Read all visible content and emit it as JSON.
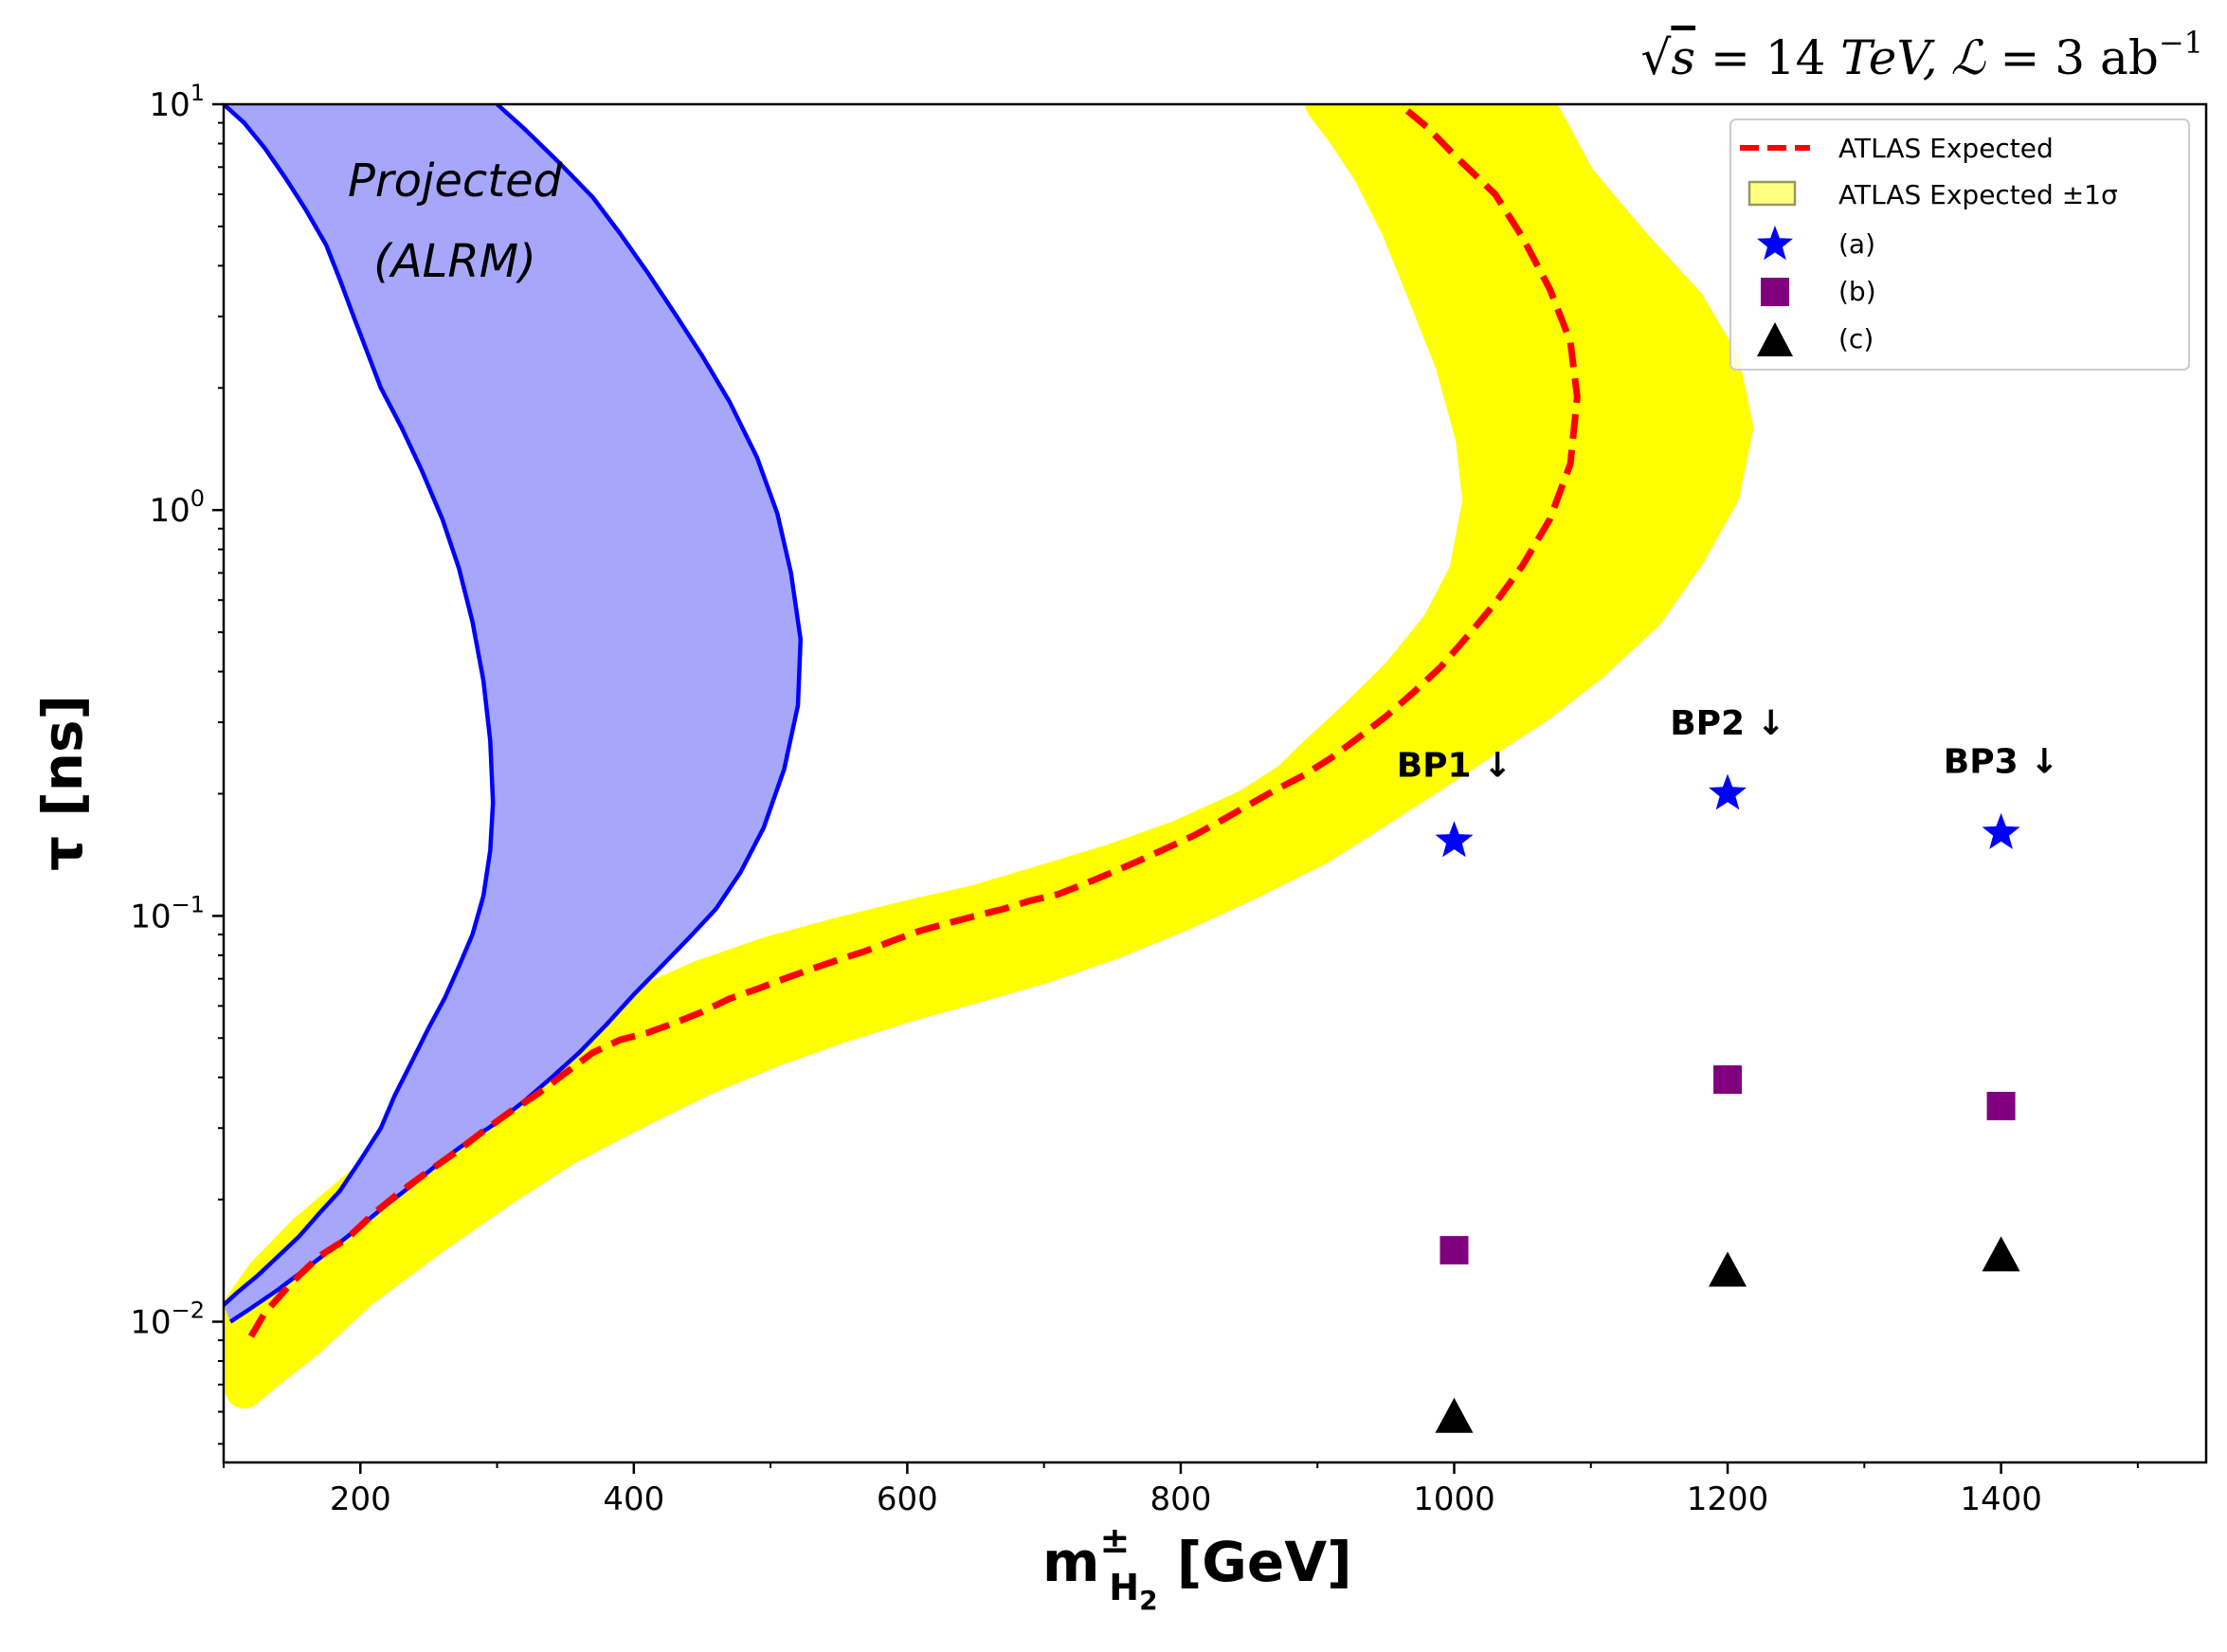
{
  "chart_data": {
    "type": "line",
    "title": "√s = 14 TeV,  ℒ = 3 ab⁻¹",
    "title_parts": {
      "sqrt": "√",
      "s": "s",
      "eq1": " = 14 ",
      "tev": "TeV,",
      "lumi": "ℒ",
      "eq2": " = 3 ab",
      "sup": "−1"
    },
    "xlabel": "m",
    "xlabel_sup": "±",
    "xlabel_sub": "H",
    "xlabel_subsub": "2",
    "xlabel_unit": " [GeV]",
    "ylabel": "τ [ns]",
    "xlim": [
      100,
      1550
    ],
    "ylim": [
      0.0045,
      10
    ],
    "y_scale": "log",
    "x_ticks": [
      200,
      400,
      600,
      800,
      1000,
      1200,
      1400
    ],
    "x_tick_labels": [
      "200",
      "400",
      "600",
      "800",
      "1000",
      "1200",
      "1400"
    ],
    "y_ticks": [
      {
        "value": 10,
        "base": "10",
        "exp": "1"
      },
      {
        "value": 1,
        "base": "10",
        "exp": "0"
      },
      {
        "value": 0.1,
        "base": "10",
        "exp": "−1"
      },
      {
        "value": 0.01,
        "base": "10",
        "exp": "−2"
      }
    ],
    "grid": false,
    "legend_position": "top-right",
    "legend": [
      {
        "label": "ATLAS Expected",
        "marker": "dashed-line",
        "color": "#ff0000"
      },
      {
        "label": "ATLAS Expected ±1σ",
        "marker": "band",
        "color": "#ffff80"
      },
      {
        "label": "(a)",
        "marker": "star",
        "color": "#0000ff"
      },
      {
        "label": "(b)",
        "marker": "square",
        "color": "#800080"
      },
      {
        "label": "(c)",
        "marker": "triangle",
        "color": "#000000"
      }
    ],
    "colors": {
      "expected_line": "#ff0000",
      "band": "#ffff00",
      "projected_fill": "#a6a6fb",
      "projected_edge": "#0000ff",
      "star": "#0000ff",
      "square": "#800080",
      "triangle": "#000000"
    },
    "atlas_expected": {
      "x": [
        120,
        130,
        150,
        170,
        190,
        210,
        230,
        250,
        270,
        290,
        310,
        330,
        350,
        370,
        390,
        410,
        430,
        450,
        470,
        490,
        510,
        530,
        550,
        570,
        590,
        610,
        630,
        650,
        670,
        690,
        710,
        730,
        750,
        770,
        790,
        810,
        830,
        850,
        870,
        890,
        910,
        930,
        950,
        970,
        990,
        1010,
        1030,
        1050,
        1070,
        1085,
        1090,
        1085,
        1070,
        1050,
        1030,
        1000,
        980,
        960
      ],
      "y": [
        0.0092,
        0.0105,
        0.0125,
        0.0145,
        0.016,
        0.0185,
        0.021,
        0.0235,
        0.0262,
        0.0295,
        0.033,
        0.0365,
        0.041,
        0.046,
        0.0495,
        0.0515,
        0.0545,
        0.058,
        0.0625,
        0.066,
        0.07,
        0.074,
        0.078,
        0.082,
        0.087,
        0.092,
        0.096,
        0.1,
        0.104,
        0.109,
        0.113,
        0.12,
        0.128,
        0.137,
        0.147,
        0.158,
        0.172,
        0.188,
        0.205,
        0.222,
        0.245,
        0.275,
        0.31,
        0.355,
        0.41,
        0.49,
        0.59,
        0.73,
        0.95,
        1.3,
        1.9,
        2.6,
        3.5,
        4.7,
        6.0,
        7.5,
        8.8,
        10.0
      ]
    },
    "atlas_band": {
      "lower_edge": {
        "x": [
          115,
          130,
          160,
          200,
          250,
          300,
          350,
          400,
          450,
          500,
          550,
          600,
          650,
          700,
          750,
          800,
          850,
          900,
          940,
          980,
          1020,
          1060,
          1100,
          1140,
          1170,
          1195,
          1205,
          1195,
          1170,
          1130,
          1090,
          1060
        ],
        "y": [
          0.0068,
          0.0075,
          0.009,
          0.012,
          0.016,
          0.021,
          0.027,
          0.033,
          0.04,
          0.047,
          0.054,
          0.061,
          0.068,
          0.076,
          0.087,
          0.102,
          0.122,
          0.148,
          0.18,
          0.22,
          0.27,
          0.33,
          0.42,
          0.56,
          0.78,
          1.1,
          1.6,
          2.3,
          3.2,
          4.5,
          6.5,
          10.0
        ]
      },
      "upper_edge": {
        "x": [
          115,
          130,
          160,
          200,
          250,
          300,
          350,
          400,
          450,
          500,
          550,
          600,
          650,
          700,
          750,
          800,
          850,
          880,
          900,
          930,
          960,
          990,
          1010,
          1020,
          1015,
          1000,
          980,
          960,
          940,
          920,
          905
        ],
        "y": [
          0.011,
          0.013,
          0.0165,
          0.0215,
          0.029,
          0.038,
          0.048,
          0.059,
          0.07,
          0.08,
          0.089,
          0.098,
          0.107,
          0.12,
          0.135,
          0.155,
          0.185,
          0.215,
          0.25,
          0.31,
          0.39,
          0.52,
          0.7,
          1.05,
          1.5,
          2.3,
          3.4,
          5.0,
          6.8,
          8.6,
          10.0
        ]
      }
    },
    "projected_alrm": {
      "label_line1": "Projected",
      "label_line2": "(ALRM)",
      "left_edge": {
        "x": [
          100,
          115,
          130,
          145,
          160,
          175,
          185,
          195,
          205,
          215,
          230,
          245,
          260,
          272,
          282,
          290,
          295,
          297,
          295,
          290,
          282,
          272,
          262,
          250,
          238,
          225,
          215,
          200,
          185,
          170,
          155,
          140,
          125,
          110,
          100
        ],
        "y": [
          10.0,
          9.0,
          7.8,
          6.6,
          5.5,
          4.5,
          3.7,
          3.0,
          2.45,
          2.0,
          1.6,
          1.25,
          0.95,
          0.72,
          0.53,
          0.38,
          0.27,
          0.19,
          0.145,
          0.112,
          0.09,
          0.075,
          0.063,
          0.053,
          0.044,
          0.036,
          0.03,
          0.025,
          0.021,
          0.0185,
          0.0162,
          0.0145,
          0.013,
          0.0118,
          0.011
        ]
      },
      "right_edge": {
        "x": [
          300,
          320,
          345,
          370,
          390,
          410,
          430,
          450,
          470,
          490,
          505,
          515,
          522,
          520,
          510,
          495,
          478,
          460,
          440,
          420,
          400,
          380,
          360,
          340,
          320,
          300,
          280,
          260,
          240,
          220,
          200,
          180,
          160,
          140,
          120,
          105
        ],
        "y": [
          10.0,
          8.7,
          7.2,
          5.9,
          4.8,
          3.85,
          3.05,
          2.4,
          1.85,
          1.35,
          0.98,
          0.7,
          0.48,
          0.33,
          0.23,
          0.165,
          0.128,
          0.104,
          0.088,
          0.075,
          0.064,
          0.054,
          0.046,
          0.04,
          0.035,
          0.031,
          0.028,
          0.025,
          0.022,
          0.0195,
          0.0172,
          0.0152,
          0.0135,
          0.012,
          0.0108,
          0.01
        ]
      }
    },
    "benchmark_points": [
      {
        "label": "BP1 ↓",
        "x": 1000,
        "a": 0.153,
        "b": 0.015,
        "c": 0.0058,
        "label_y": 0.22
      },
      {
        "label": "BP2 ↓",
        "x": 1200,
        "a": 0.2,
        "b": 0.0395,
        "c": 0.0133,
        "label_y": 0.28
      },
      {
        "label": "BP3 ↓",
        "x": 1400,
        "a": 0.16,
        "b": 0.034,
        "c": 0.0145,
        "label_y": 0.225
      }
    ]
  }
}
